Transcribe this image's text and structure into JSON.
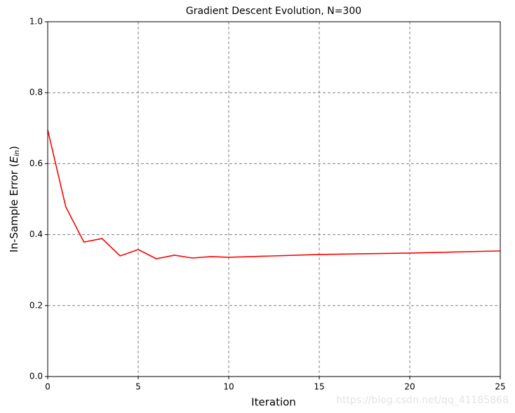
{
  "chart_data": {
    "type": "line",
    "title": "Gradient Descent Evolution, N=300",
    "xlabel": "Iteration",
    "ylabel": [
      "In-Sample Error (",
      "E",
      "in",
      ")"
    ],
    "x": [
      0,
      1,
      2,
      3,
      4,
      5,
      6,
      7,
      8,
      9,
      10,
      15,
      20,
      25
    ],
    "series": [
      {
        "name": "E_in",
        "color": "#ff0000",
        "values": [
          0.695,
          0.478,
          0.379,
          0.389,
          0.34,
          0.358,
          0.332,
          0.342,
          0.334,
          0.338,
          0.336,
          0.344,
          0.348,
          0.354
        ]
      }
    ],
    "xlim": [
      0,
      25
    ],
    "xticks": [
      0,
      5,
      10,
      15,
      20,
      25
    ],
    "ylim": [
      0,
      1
    ],
    "yticks": [
      {
        "value": 0,
        "label": "0.0"
      },
      0.2,
      0.4,
      0.6,
      0.8,
      {
        "value": 1,
        "label": "1.0"
      }
    ],
    "grid": true,
    "watermark": "https://blog.csdn.net/qq_41185868"
  }
}
